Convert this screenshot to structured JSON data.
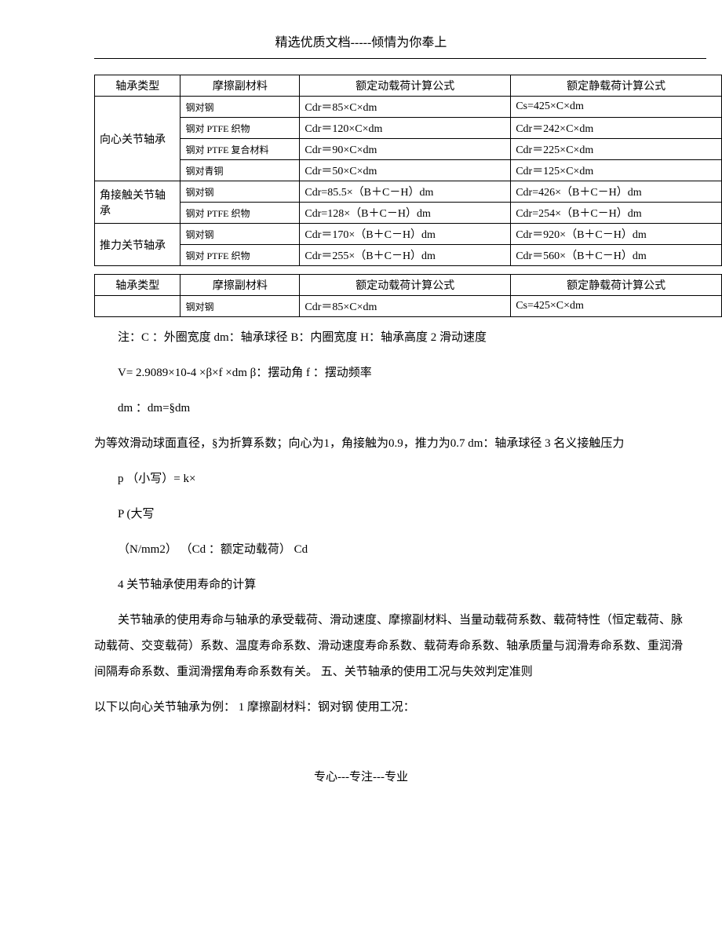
{
  "header": {
    "title": "精选优质文档-----倾情为你奉上"
  },
  "table1": {
    "headers": {
      "type": "轴承类型",
      "material": "摩擦副材料",
      "dynamic": "额定动载荷计算公式",
      "static": "额定静载荷计算公式"
    },
    "groups": [
      {
        "type": "向心关节轴承",
        "rows": [
          {
            "mat": "钢对钢",
            "dyn": "Cdr＝85×C×dm",
            "stat": "Cs=425×C×dm"
          },
          {
            "mat": "钢对 PTFE 织物",
            "dyn": "Cdr＝120×C×dm",
            "stat": "Cdr＝242×C×dm"
          },
          {
            "mat": "钢对 PTFE 复合材料",
            "dyn": "Cdr＝90×C×dm",
            "stat": "Cdr＝225×C×dm"
          },
          {
            "mat": "钢对青铜",
            "dyn": "Cdr＝50×C×dm",
            "stat": "Cdr＝125×C×dm"
          }
        ]
      },
      {
        "type": "角接触关节轴承",
        "rows": [
          {
            "mat": "钢对钢",
            "dyn": "Cdr=85.5×（B＋C－H）dm",
            "stat": "Cdr=426×（B＋C－H）dm"
          },
          {
            "mat": "钢对 PTFE 织物",
            "dyn": "Cdr=128×（B＋C－H）dm",
            "stat": "Cdr=254×（B＋C－H）dm"
          }
        ]
      },
      {
        "type": "推力关节轴承",
        "rows": [
          {
            "mat": "钢对钢",
            "dyn": "Cdr＝170×（B＋C－H）dm",
            "stat": "Cdr＝920×（B＋C－H）dm"
          },
          {
            "mat": "钢对 PTFE 织物",
            "dyn": "Cdr＝255×（B＋C－H）dm",
            "stat": "Cdr＝560×（B＋C－H）dm"
          }
        ]
      }
    ]
  },
  "table2": {
    "headers": {
      "type": "轴承类型",
      "material": "摩擦副材料",
      "dynamic": "额定动载荷计算公式",
      "static": "额定静载荷计算公式"
    },
    "rows": [
      {
        "type": "",
        "mat": "钢对钢",
        "dyn": "Cdr＝85×C×dm",
        "stat": "Cs=425×C×dm"
      }
    ]
  },
  "body": {
    "note": "注：C ：外圈宽度 dm：轴承球径 B：内圈宽度 H：轴承高度 2 滑动速度",
    "velocity": "V= 2.9089×10-4 ×β×f ×dm β：摆动角 f ：摆动频率",
    "dm": "dm ：dm=§dm",
    "dm_desc": "为等效滑动球面直径，§为折算系数；向心为1，角接触为0.9，推力为0.7 dm：轴承球径 3 名义接触压力",
    "p_lower": "p （小写）= k×",
    "p_upper": "P (大写",
    "nmm": "（N/mm2） （Cd ：额定动载荷） Cd",
    "section4": "4 关节轴承使用寿命的计算",
    "para": "关节轴承的使用寿命与轴承的承受载荷、滑动速度、摩擦副材料、当量动载荷系数、载荷特性（恒定载荷、脉动载荷、交变载荷）系数、温度寿命系数、滑动速度寿命系数、载荷寿命系数、轴承质量与润滑寿命系数、重润滑间隔寿命系数、重润滑摆角寿命系数有关。 五、关节轴承的使用工况与失效判定准则",
    "example": "以下以向心关节轴承为例： 1 摩擦副材料：钢对钢 使用工况："
  },
  "footer": {
    "text": "专心---专注---专业"
  }
}
